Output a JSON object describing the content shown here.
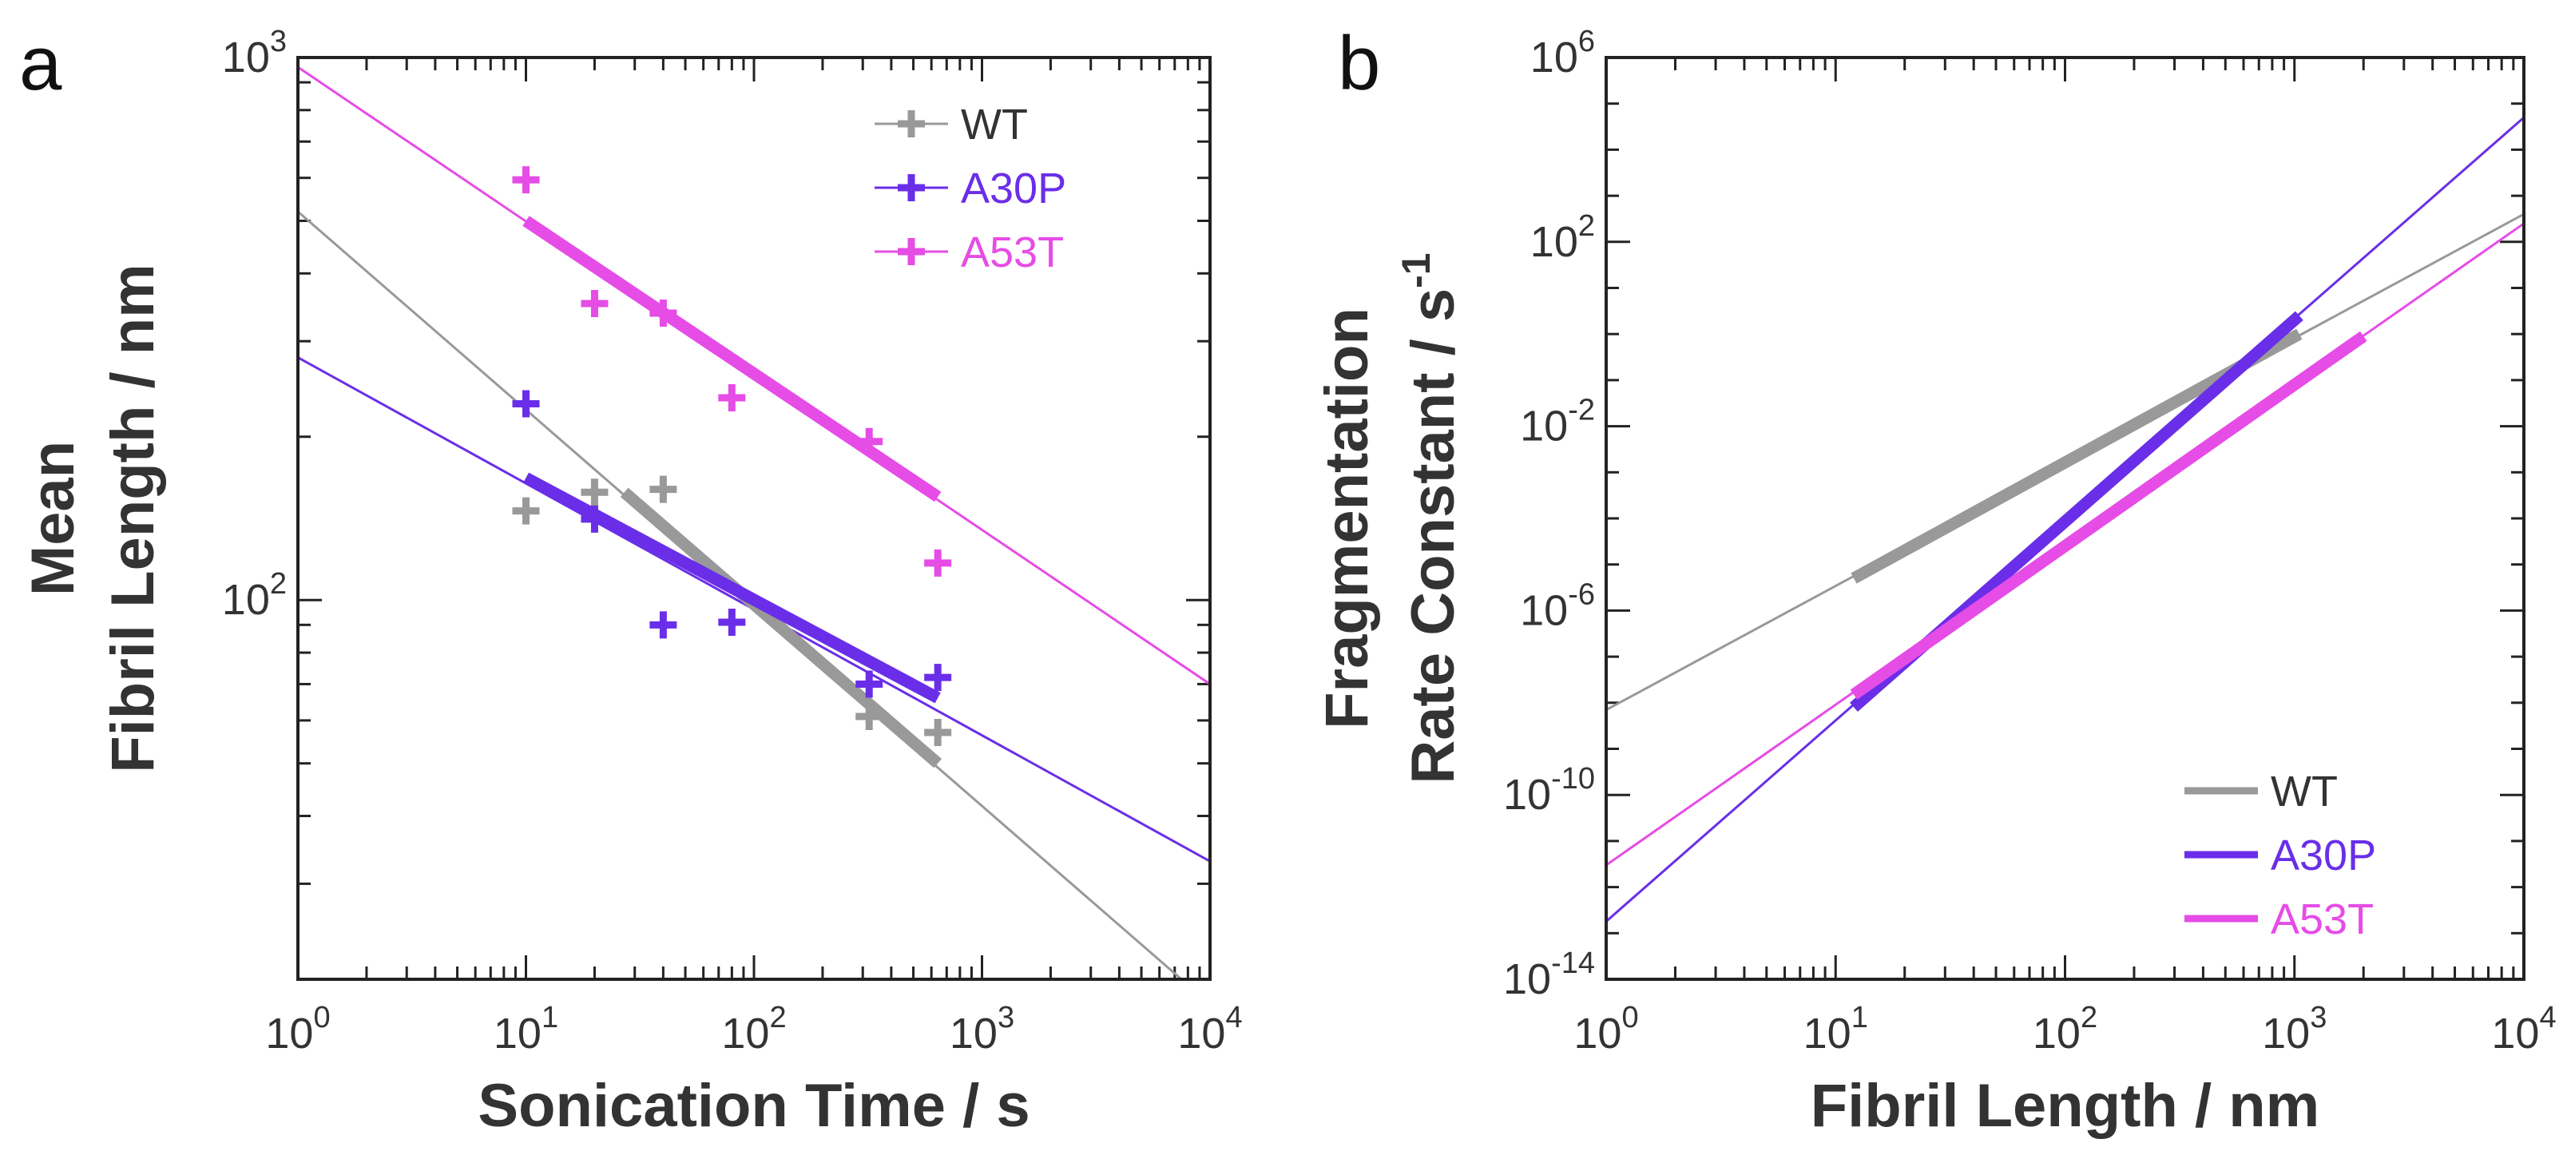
{
  "chart_data": [
    {
      "panel_label": "a",
      "type": "scatter",
      "xscale": "log",
      "yscale": "log",
      "xlim": [
        1,
        10000
      ],
      "ylim": [
        20,
        1000
      ],
      "xlabel": "Sonication Time / s",
      "ylabel_lines": [
        "Mean",
        "Fibril Length / nm"
      ],
      "x_ticks": [
        {
          "value": 1,
          "base": "10",
          "exp": "0"
        },
        {
          "value": 10,
          "base": "10",
          "exp": "1"
        },
        {
          "value": 100,
          "base": "10",
          "exp": "2"
        },
        {
          "value": 1000,
          "base": "10",
          "exp": "3"
        },
        {
          "value": 10000,
          "base": "10",
          "exp": "4"
        }
      ],
      "y_ticks": [
        {
          "value": 100,
          "base": "10",
          "exp": "2"
        },
        {
          "value": 1000,
          "base": "10",
          "exp": "3"
        }
      ],
      "legend": {
        "position": "top-right",
        "style": "marker"
      },
      "series": [
        {
          "name": "WT",
          "color": "#999999",
          "points": [
            [
              10,
              146
            ],
            [
              20,
              158
            ],
            [
              40,
              160
            ],
            [
              320,
              61
            ],
            [
              640,
              57
            ]
          ],
          "fit_line": [
            [
              1,
              520
            ],
            [
              10000,
              18
            ]
          ],
          "fit_segment": [
            [
              27,
              158
            ],
            [
              640,
              50
            ]
          ]
        },
        {
          "name": "A30P",
          "color": "#6a2ee8",
          "points": [
            [
              10,
              230
            ],
            [
              20,
              141
            ],
            [
              40,
              90
            ],
            [
              80,
              91
            ],
            [
              320,
              70
            ],
            [
              640,
              72
            ]
          ],
          "fit_line": [
            [
              1,
              280
            ],
            [
              10000,
              33
            ]
          ],
          "fit_segment": [
            [
              10,
              168
            ],
            [
              640,
              66
            ]
          ]
        },
        {
          "name": "A53T",
          "color": "#e64ce6",
          "points": [
            [
              10,
              595
            ],
            [
              20,
              352
            ],
            [
              40,
              338
            ],
            [
              80,
              236
            ],
            [
              320,
              196
            ],
            [
              640,
              117
            ]
          ],
          "fit_line": [
            [
              1,
              960
            ],
            [
              10000,
              70
            ]
          ],
          "fit_segment": [
            [
              10,
              500
            ],
            [
              640,
              155
            ]
          ]
        }
      ]
    },
    {
      "panel_label": "b",
      "type": "line",
      "xscale": "log",
      "yscale": "log",
      "xlim": [
        1,
        10000
      ],
      "ylim": [
        1e-14,
        1000000.0
      ],
      "xlabel": "Fibril Length / nm",
      "ylabel_lines": [
        "Fragmentation",
        "Rate Constant / s"
      ],
      "ylabel_superscript": "-1",
      "x_ticks": [
        {
          "value": 1,
          "base": "10",
          "exp": "0"
        },
        {
          "value": 10,
          "base": "10",
          "exp": "1"
        },
        {
          "value": 100,
          "base": "10",
          "exp": "2"
        },
        {
          "value": 1000,
          "base": "10",
          "exp": "3"
        },
        {
          "value": 10000,
          "base": "10",
          "exp": "4"
        }
      ],
      "y_ticks": [
        {
          "value": 1e-14,
          "base": "10",
          "exp": "-14"
        },
        {
          "value": 1e-10,
          "base": "10",
          "exp": "-10"
        },
        {
          "value": 1e-06,
          "base": "10",
          "exp": "-6"
        },
        {
          "value": 0.01,
          "base": "10",
          "exp": "-2"
        },
        {
          "value": 100,
          "base": "10",
          "exp": "2"
        },
        {
          "value": 1000000,
          "base": "10",
          "exp": "6"
        }
      ],
      "legend": {
        "position": "bottom-right",
        "style": "line"
      },
      "series": [
        {
          "name": "WT",
          "color": "#999999",
          "fit_line": [
            [
              1,
              7e-09
            ],
            [
              10000,
              400
            ]
          ],
          "fit_segment": [
            [
              12,
              5e-06
            ],
            [
              1050,
              1
            ]
          ]
        },
        {
          "name": "A30P",
          "color": "#6a2ee8",
          "fit_line": [
            [
              1,
              1.8e-13
            ],
            [
              10000,
              50000.0
            ]
          ],
          "fit_segment": [
            [
              12,
              8e-09
            ],
            [
              1050,
              2.5
            ]
          ]
        },
        {
          "name": "A53T",
          "color": "#e64ce6",
          "fit_line": [
            [
              1,
              3e-12
            ],
            [
              10000,
              250
            ]
          ],
          "fit_segment": [
            [
              12,
              1.5e-08
            ],
            [
              2000,
              0.9
            ]
          ]
        }
      ]
    }
  ]
}
